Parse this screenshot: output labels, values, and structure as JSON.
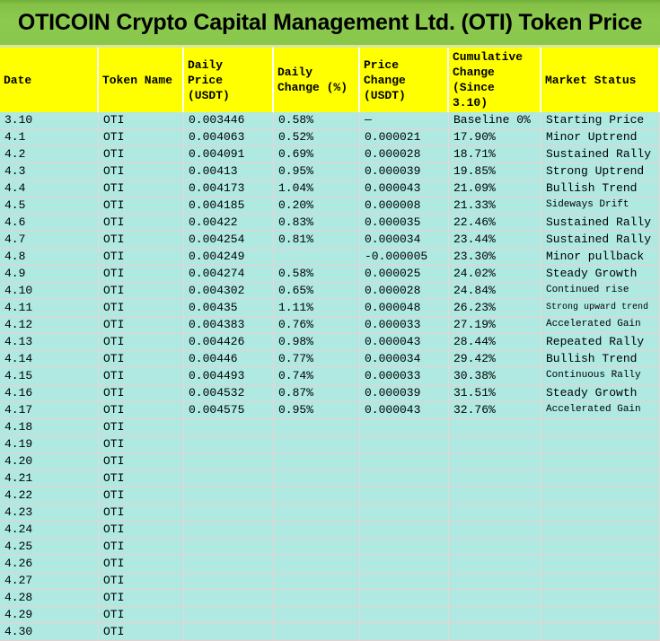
{
  "title": "OTICOIN Crypto Capital Management Ltd. (OTI) Token Price",
  "colors": {
    "title_bar": "#8cc94f",
    "header_bg": "#ffff00",
    "cell_bg": "#afe9e2",
    "grid_h": "#edcfcf",
    "grid_v": "#e5d8d6"
  },
  "table": {
    "columns": [
      "Date",
      "Token Name",
      "Daily\nPrice\n(USDT)",
      "Daily\nChange (%)",
      "Price\nChange\n(USDT)",
      "Cumulative\nChange\n(Since\n3.10)",
      "Market Status"
    ],
    "rows": [
      {
        "date": "3.10",
        "token": "OTI",
        "price": "0.003446",
        "daily_change": "0.58%",
        "price_change": "—",
        "cumulative": "Baseline 0%",
        "status": "Starting Price"
      },
      {
        "date": "4.1",
        "token": "OTI",
        "price": "0.004063",
        "daily_change": "0.52%",
        "price_change": "0.000021",
        "cumulative": "17.90%",
        "status": "Minor Uptrend"
      },
      {
        "date": "4.2",
        "token": "OTI",
        "price": "0.004091",
        "daily_change": "0.69%",
        "price_change": "0.000028",
        "cumulative": "18.71%",
        "status": "Sustained Rally"
      },
      {
        "date": "4.3",
        "token": "OTI",
        "price": "0.00413",
        "daily_change": "0.95%",
        "price_change": "0.000039",
        "cumulative": "19.85%",
        "status": "Strong Uptrend"
      },
      {
        "date": "4.4",
        "token": "OTI",
        "price": "0.004173",
        "daily_change": "1.04%",
        "price_change": "0.000043",
        "cumulative": "21.09%",
        "status": "Bullish Trend"
      },
      {
        "date": "4.5",
        "token": "OTI",
        "price": "0.004185",
        "daily_change": "0.20%",
        "price_change": "0.000008",
        "cumulative": "21.33%",
        "status": "Sideways Drift",
        "status_size": "sm"
      },
      {
        "date": "4.6",
        "token": "OTI",
        "price": "0.00422",
        "daily_change": "0.83%",
        "price_change": "0.000035",
        "cumulative": "22.46%",
        "status": "Sustained Rally"
      },
      {
        "date": "4.7",
        "token": "OTI",
        "price": "0.004254",
        "daily_change": "0.81%",
        "price_change": "0.000034",
        "cumulative": "23.44%",
        "status": "Sustained Rally"
      },
      {
        "date": "4.8",
        "token": "OTI",
        "price": "0.004249",
        "daily_change": "",
        "price_change": "-0.000005",
        "cumulative": "23.30%",
        "status": "Minor pullback"
      },
      {
        "date": "4.9",
        "token": "OTI",
        "price": "0.004274",
        "daily_change": "0.58%",
        "price_change": "0.000025",
        "cumulative": "24.02%",
        "status": "Steady Growth"
      },
      {
        "date": "4.10",
        "token": "OTI",
        "price": "0.004302",
        "daily_change": "0.65%",
        "price_change": "0.000028",
        "cumulative": "24.84%",
        "status": "Continued rise",
        "status_size": "sm"
      },
      {
        "date": "4.11",
        "token": "OTI",
        "price": "0.00435",
        "daily_change": "1.11%",
        "price_change": "0.000048",
        "cumulative": "26.23%",
        "status": "Strong upward trend",
        "status_size": "xs"
      },
      {
        "date": "4.12",
        "token": "OTI",
        "price": "0.004383",
        "daily_change": "0.76%",
        "price_change": "0.000033",
        "cumulative": "27.19%",
        "status": "Accelerated Gain",
        "status_size": "sm"
      },
      {
        "date": "4.13",
        "token": "OTI",
        "price": "0.004426",
        "daily_change": "0.98%",
        "price_change": "0.000043",
        "cumulative": "28.44%",
        "status": "Repeated Rally"
      },
      {
        "date": "4.14",
        "token": "OTI",
        "price": "0.00446",
        "daily_change": "0.77%",
        "price_change": "0.000034",
        "cumulative": "29.42%",
        "status": "Bullish Trend"
      },
      {
        "date": "4.15",
        "token": "OTI",
        "price": "0.004493",
        "daily_change": "0.74%",
        "price_change": "0.000033",
        "cumulative": "30.38%",
        "status": "Continuous Rally",
        "status_size": "sm"
      },
      {
        "date": "4.16",
        "token": "OTI",
        "price": "0.004532",
        "daily_change": "0.87%",
        "price_change": "0.000039",
        "cumulative": "31.51%",
        "status": "Steady Growth"
      },
      {
        "date": "4.17",
        "token": "OTI",
        "price": "0.004575",
        "daily_change": "0.95%",
        "price_change": "0.000043",
        "cumulative": "32.76%",
        "status": "Accelerated Gain",
        "status_size": "sm"
      },
      {
        "date": "4.18",
        "token": "OTI",
        "price": "",
        "daily_change": "",
        "price_change": "",
        "cumulative": "",
        "status": ""
      },
      {
        "date": "4.19",
        "token": "OTI",
        "price": "",
        "daily_change": "",
        "price_change": "",
        "cumulative": "",
        "status": ""
      },
      {
        "date": "4.20",
        "token": "OTI",
        "price": "",
        "daily_change": "",
        "price_change": "",
        "cumulative": "",
        "status": ""
      },
      {
        "date": "4.21",
        "token": "OTI",
        "price": "",
        "daily_change": "",
        "price_change": "",
        "cumulative": "",
        "status": ""
      },
      {
        "date": "4.22",
        "token": "OTI",
        "price": "",
        "daily_change": "",
        "price_change": "",
        "cumulative": "",
        "status": ""
      },
      {
        "date": "4.23",
        "token": "OTI",
        "price": "",
        "daily_change": "",
        "price_change": "",
        "cumulative": "",
        "status": ""
      },
      {
        "date": "4.24",
        "token": "OTI",
        "price": "",
        "daily_change": "",
        "price_change": "",
        "cumulative": "",
        "status": ""
      },
      {
        "date": "4.25",
        "token": "OTI",
        "price": "",
        "daily_change": "",
        "price_change": "",
        "cumulative": "",
        "status": ""
      },
      {
        "date": "4.26",
        "token": "OTI",
        "price": "",
        "daily_change": "",
        "price_change": "",
        "cumulative": "",
        "status": ""
      },
      {
        "date": "4.27",
        "token": "OTI",
        "price": "",
        "daily_change": "",
        "price_change": "",
        "cumulative": "",
        "status": ""
      },
      {
        "date": "4.28",
        "token": "OTI",
        "price": "",
        "daily_change": "",
        "price_change": "",
        "cumulative": "",
        "status": ""
      },
      {
        "date": "4.29",
        "token": "OTI",
        "price": "",
        "daily_change": "",
        "price_change": "",
        "cumulative": "",
        "status": ""
      },
      {
        "date": "4.30",
        "token": "OTI",
        "price": "",
        "daily_change": "",
        "price_change": "",
        "cumulative": "",
        "status": ""
      }
    ]
  }
}
